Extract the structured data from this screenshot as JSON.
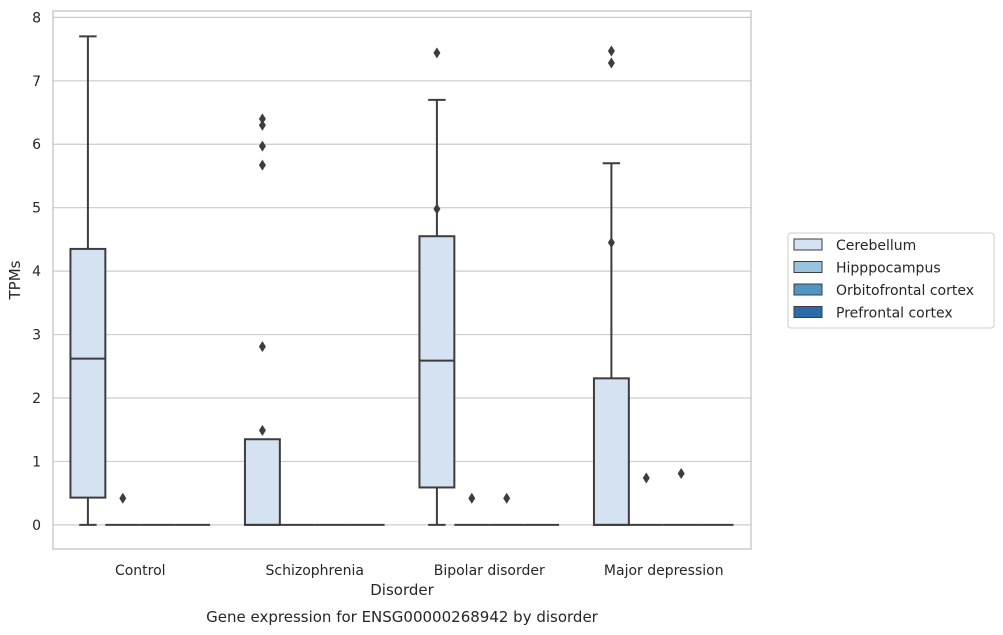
{
  "caption": "Gene expression for ENSG00000268942 by disorder",
  "chart_data": {
    "type": "box",
    "xlabel": "Disorder",
    "ylabel": "TPMs",
    "ylim": [
      -0.38,
      8.1
    ],
    "yticks": [
      0,
      1,
      2,
      3,
      4,
      5,
      6,
      7,
      8
    ],
    "grid": "horizontal",
    "legend_position": "right",
    "categories": [
      "Control",
      "Schizophrenia",
      "Bipolar disorder",
      "Major depression"
    ],
    "series": [
      {
        "name": "Cerebellum",
        "color": "#d4e2f1",
        "boxes": [
          {
            "category": "Control",
            "whislo": 0.0,
            "q1": 0.43,
            "med": 2.62,
            "q3": 4.35,
            "whishi": 7.7,
            "fliers": []
          },
          {
            "category": "Schizophrenia",
            "whislo": 0.0,
            "q1": 0.0,
            "med": 0.0,
            "q3": 1.35,
            "whishi": 1.35,
            "fliers": [
              6.4,
              6.3,
              5.97,
              5.67,
              2.81,
              1.49
            ]
          },
          {
            "category": "Bipolar disorder",
            "whislo": 0.0,
            "q1": 0.59,
            "med": 2.59,
            "q3": 4.55,
            "whishi": 6.7,
            "fliers": [
              7.44,
              4.98
            ]
          },
          {
            "category": "Major depression",
            "whislo": 0.0,
            "q1": 0.0,
            "med": 0.0,
            "q3": 2.31,
            "whishi": 5.7,
            "fliers": [
              7.47,
              7.28,
              4.45
            ]
          }
        ]
      },
      {
        "name": "Hipppocampus",
        "color": "#9ac3de",
        "boxes": [
          {
            "category": "Control",
            "whislo": 0.0,
            "q1": 0.0,
            "med": 0.0,
            "q3": 0.0,
            "whishi": 0.0,
            "fliers": [
              0.42
            ]
          },
          {
            "category": "Schizophrenia",
            "whislo": 0.0,
            "q1": 0.0,
            "med": 0.0,
            "q3": 0.0,
            "whishi": 0.0,
            "fliers": []
          },
          {
            "category": "Bipolar disorder",
            "whislo": 0.0,
            "q1": 0.0,
            "med": 0.0,
            "q3": 0.0,
            "whishi": 0.0,
            "fliers": [
              0.42
            ]
          },
          {
            "category": "Major depression",
            "whislo": 0.0,
            "q1": 0.0,
            "med": 0.0,
            "q3": 0.0,
            "whishi": 0.0,
            "fliers": [
              0.74
            ]
          }
        ]
      },
      {
        "name": "Orbitofrontal cortex",
        "color": "#5195c4",
        "boxes": [
          {
            "category": "Control",
            "whislo": 0.0,
            "q1": 0.0,
            "med": 0.0,
            "q3": 0.0,
            "whishi": 0.0,
            "fliers": []
          },
          {
            "category": "Schizophrenia",
            "whislo": 0.0,
            "q1": 0.0,
            "med": 0.0,
            "q3": 0.0,
            "whishi": 0.0,
            "fliers": []
          },
          {
            "category": "Bipolar disorder",
            "whislo": 0.0,
            "q1": 0.0,
            "med": 0.0,
            "q3": 0.0,
            "whishi": 0.0,
            "fliers": [
              0.42
            ]
          },
          {
            "category": "Major depression",
            "whislo": 0.0,
            "q1": 0.0,
            "med": 0.0,
            "q3": 0.0,
            "whishi": 0.0,
            "fliers": [
              0.81
            ]
          }
        ]
      },
      {
        "name": "Prefrontal cortex",
        "color": "#2a6aa8",
        "boxes": [
          {
            "category": "Control",
            "whislo": 0.0,
            "q1": 0.0,
            "med": 0.0,
            "q3": 0.0,
            "whishi": 0.0,
            "fliers": []
          },
          {
            "category": "Schizophrenia",
            "whislo": 0.0,
            "q1": 0.0,
            "med": 0.0,
            "q3": 0.0,
            "whishi": 0.0,
            "fliers": []
          },
          {
            "category": "Bipolar disorder",
            "whislo": 0.0,
            "q1": 0.0,
            "med": 0.0,
            "q3": 0.0,
            "whishi": 0.0,
            "fliers": []
          },
          {
            "category": "Major depression",
            "whislo": 0.0,
            "q1": 0.0,
            "med": 0.0,
            "q3": 0.0,
            "whishi": 0.0,
            "fliers": []
          }
        ]
      }
    ]
  }
}
